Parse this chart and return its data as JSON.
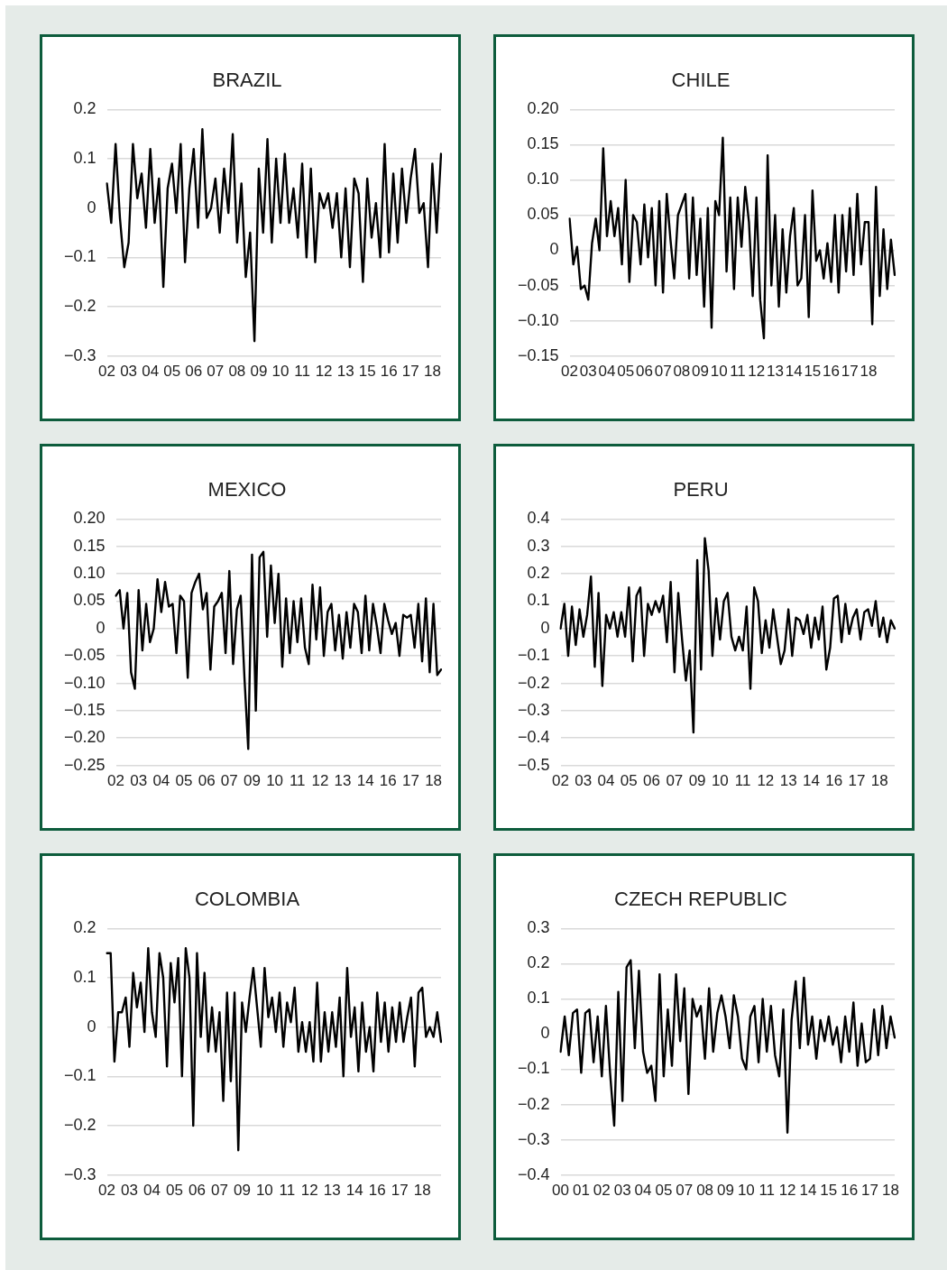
{
  "chart_data": [
    {
      "type": "line",
      "title": "BRAZIL",
      "color": "#000000",
      "grid": "y",
      "ylim": [
        -0.3,
        0.2
      ],
      "yticks": [
        {
          "value": 0.2,
          "label": "0.2"
        },
        {
          "value": 0.1,
          "label": "0.1"
        },
        {
          "value": 0,
          "label": "0"
        },
        {
          "value": -0.1,
          "label": "−0.1"
        },
        {
          "value": -0.2,
          "label": "−0.2"
        },
        {
          "value": -0.3,
          "label": "−0.3"
        }
      ],
      "categories": [
        "02",
        null,
        null,
        null,
        null,
        "03",
        null,
        null,
        null,
        null,
        "04",
        null,
        null,
        null,
        null,
        "05",
        null,
        null,
        null,
        null,
        "06",
        null,
        null,
        null,
        null,
        "07",
        null,
        null,
        null,
        null,
        "08",
        null,
        null,
        null,
        null,
        "09",
        null,
        null,
        null,
        null,
        "10",
        null,
        null,
        null,
        null,
        "11",
        null,
        null,
        null,
        null,
        "12",
        null,
        null,
        null,
        null,
        "13",
        null,
        null,
        null,
        null,
        "15",
        null,
        null,
        null,
        null,
        "16",
        null,
        null,
        null,
        null,
        "17",
        null,
        null,
        null,
        null,
        "18",
        null,
        null
      ],
      "values": [
        0.05,
        -0.03,
        0.13,
        -0.02,
        -0.12,
        -0.07,
        0.13,
        0.02,
        0.07,
        -0.04,
        0.12,
        -0.03,
        0.06,
        -0.16,
        0.04,
        0.09,
        -0.01,
        0.13,
        -0.11,
        0.04,
        0.12,
        -0.04,
        0.16,
        -0.02,
        0.0,
        0.06,
        -0.05,
        0.08,
        -0.01,
        0.15,
        -0.07,
        0.05,
        -0.14,
        -0.05,
        -0.27,
        0.08,
        -0.05,
        0.14,
        -0.07,
        0.1,
        -0.03,
        0.11,
        -0.03,
        0.04,
        -0.06,
        0.09,
        -0.1,
        0.08,
        -0.11,
        0.03,
        0.0,
        0.03,
        -0.04,
        0.03,
        -0.1,
        0.04,
        -0.12,
        0.06,
        0.03,
        -0.15,
        0.06,
        -0.06,
        0.01,
        -0.1,
        0.13,
        -0.09,
        0.07,
        -0.07,
        0.08,
        -0.03,
        0.06,
        0.12,
        -0.01,
        0.01,
        -0.12,
        0.09,
        -0.05,
        0.11
      ]
    },
    {
      "type": "line",
      "title": "CHILE",
      "color": "#000000",
      "grid": "y",
      "ylim": [
        -0.15,
        0.2
      ],
      "yticks": [
        {
          "value": 0.2,
          "label": "0.20"
        },
        {
          "value": 0.15,
          "label": "0.15"
        },
        {
          "value": 0.1,
          "label": "0.10"
        },
        {
          "value": 0.05,
          "label": "0.05"
        },
        {
          "value": 0,
          "label": "0"
        },
        {
          "value": -0.05,
          "label": "−0.05"
        },
        {
          "value": -0.1,
          "label": "−0.10"
        },
        {
          "value": -0.15,
          "label": "−0.15"
        }
      ],
      "categories": [
        "02",
        null,
        null,
        null,
        null,
        "03",
        null,
        null,
        null,
        null,
        "04",
        null,
        null,
        null,
        null,
        "05",
        null,
        null,
        null,
        null,
        "06",
        null,
        null,
        null,
        null,
        "07",
        null,
        null,
        null,
        null,
        "08",
        null,
        null,
        null,
        null,
        "09",
        null,
        null,
        null,
        null,
        "10",
        null,
        null,
        null,
        null,
        "11",
        null,
        null,
        null,
        null,
        "12",
        null,
        null,
        null,
        null,
        "13",
        null,
        null,
        null,
        null,
        "14",
        null,
        null,
        null,
        null,
        "15",
        null,
        null,
        null,
        null,
        "16",
        null,
        null,
        null,
        null,
        "17",
        null,
        null,
        null,
        null,
        "18",
        null,
        null,
        null,
        null,
        null,
        null,
        null
      ],
      "values": [
        0.045,
        -0.02,
        0.005,
        -0.055,
        -0.05,
        -0.07,
        0.01,
        0.045,
        0.0,
        0.145,
        0.02,
        0.07,
        0.02,
        0.06,
        -0.02,
        0.1,
        -0.045,
        0.05,
        0.04,
        -0.02,
        0.065,
        -0.01,
        0.06,
        -0.05,
        0.07,
        -0.06,
        0.08,
        0.015,
        -0.04,
        0.05,
        0.065,
        0.08,
        -0.04,
        0.075,
        -0.035,
        0.045,
        -0.08,
        0.06,
        -0.11,
        0.07,
        0.05,
        0.16,
        -0.03,
        0.075,
        -0.055,
        0.075,
        0.005,
        0.09,
        0.04,
        -0.065,
        0.075,
        -0.07,
        -0.125,
        0.135,
        -0.05,
        0.05,
        -0.08,
        0.03,
        -0.06,
        0.02,
        0.06,
        -0.05,
        -0.04,
        0.05,
        -0.095,
        0.085,
        -0.015,
        0.0,
        -0.04,
        0.01,
        -0.045,
        0.05,
        -0.06,
        0.05,
        -0.03,
        0.06,
        -0.035,
        0.08,
        -0.02,
        0.04,
        0.04,
        -0.105,
        0.09,
        -0.065,
        0.03,
        -0.055,
        0.015,
        -0.035
      ]
    },
    {
      "type": "line",
      "title": "MEXICO",
      "color": "#000000",
      "grid": "y",
      "ylim": [
        -0.25,
        0.2
      ],
      "yticks": [
        {
          "value": 0.2,
          "label": "0.20"
        },
        {
          "value": 0.15,
          "label": "0.15"
        },
        {
          "value": 0.1,
          "label": "0.10"
        },
        {
          "value": 0.05,
          "label": "0.05"
        },
        {
          "value": 0,
          "label": "0"
        },
        {
          "value": -0.05,
          "label": "−0.05"
        },
        {
          "value": -0.1,
          "label": "−0.10"
        },
        {
          "value": -0.15,
          "label": "−0.15"
        },
        {
          "value": -0.2,
          "label": "−0.20"
        },
        {
          "value": -0.25,
          "label": "−0.25"
        }
      ],
      "categories": [
        "02",
        null,
        null,
        null,
        null,
        null,
        "03",
        null,
        null,
        null,
        null,
        null,
        "04",
        null,
        null,
        null,
        null,
        null,
        "05",
        null,
        null,
        null,
        null,
        null,
        "06",
        null,
        null,
        null,
        null,
        null,
        "07",
        null,
        null,
        null,
        null,
        null,
        "09",
        null,
        null,
        null,
        null,
        null,
        "10",
        null,
        null,
        null,
        null,
        null,
        "11",
        null,
        null,
        null,
        null,
        null,
        "12",
        null,
        null,
        null,
        null,
        null,
        "13",
        null,
        null,
        null,
        null,
        null,
        "14",
        null,
        null,
        null,
        null,
        null,
        "16",
        null,
        null,
        null,
        null,
        null,
        "17",
        null,
        null,
        null,
        null,
        null,
        "18",
        null,
        null
      ],
      "values": [
        0.06,
        0.07,
        0.0,
        0.065,
        -0.08,
        -0.11,
        0.07,
        -0.04,
        0.045,
        -0.025,
        0.0,
        0.09,
        0.03,
        0.085,
        0.04,
        0.045,
        -0.045,
        0.06,
        0.05,
        -0.09,
        0.065,
        0.085,
        0.1,
        0.035,
        0.065,
        -0.075,
        0.04,
        0.05,
        0.065,
        -0.045,
        0.105,
        -0.065,
        0.035,
        0.06,
        -0.09,
        -0.22,
        0.135,
        -0.15,
        0.13,
        0.14,
        -0.015,
        0.115,
        0.01,
        0.1,
        -0.07,
        0.055,
        -0.045,
        0.05,
        -0.025,
        0.055,
        -0.035,
        -0.065,
        0.08,
        -0.02,
        0.075,
        -0.05,
        0.03,
        0.045,
        -0.04,
        0.025,
        -0.055,
        0.03,
        -0.035,
        0.045,
        0.03,
        -0.045,
        0.06,
        -0.04,
        0.045,
        0.005,
        -0.045,
        0.045,
        0.015,
        -0.01,
        0.01,
        -0.05,
        0.025,
        0.02,
        0.025,
        -0.035,
        0.045,
        -0.06,
        0.055,
        -0.08,
        0.045,
        -0.085,
        -0.075
      ]
    },
    {
      "type": "line",
      "title": "PERU",
      "color": "#000000",
      "grid": "y",
      "ylim": [
        -0.5,
        0.4
      ],
      "yticks": [
        {
          "value": 0.4,
          "label": "0.4"
        },
        {
          "value": 0.3,
          "label": "0.3"
        },
        {
          "value": 0.2,
          "label": "0.2"
        },
        {
          "value": 0.1,
          "label": "0.1"
        },
        {
          "value": 0,
          "label": "0"
        },
        {
          "value": -0.1,
          "label": "−0.1"
        },
        {
          "value": -0.2,
          "label": "−0.2"
        },
        {
          "value": -0.3,
          "label": "−0.3"
        },
        {
          "value": -0.4,
          "label": "−0.4"
        },
        {
          "value": -0.5,
          "label": "−0.5"
        }
      ],
      "categories": [
        "02",
        null,
        null,
        null,
        null,
        null,
        "03",
        null,
        null,
        null,
        null,
        null,
        "04",
        null,
        null,
        null,
        null,
        null,
        "05",
        null,
        null,
        null,
        null,
        null,
        "06",
        null,
        null,
        null,
        null,
        null,
        "07",
        null,
        null,
        null,
        null,
        null,
        "09",
        null,
        null,
        null,
        null,
        null,
        "10",
        null,
        null,
        null,
        null,
        null,
        "11",
        null,
        null,
        null,
        null,
        null,
        "12",
        null,
        null,
        null,
        null,
        null,
        "13",
        null,
        null,
        null,
        null,
        null,
        "14",
        null,
        null,
        null,
        null,
        null,
        "16",
        null,
        null,
        null,
        null,
        null,
        "17",
        null,
        null,
        null,
        null,
        null,
        "18",
        null,
        null,
        null,
        null
      ],
      "values": [
        0.0,
        0.09,
        -0.1,
        0.08,
        -0.06,
        0.07,
        -0.03,
        0.05,
        0.19,
        -0.14,
        0.13,
        -0.21,
        0.05,
        0.0,
        0.06,
        -0.03,
        0.06,
        -0.03,
        0.15,
        -0.12,
        0.12,
        0.15,
        -0.1,
        0.09,
        0.05,
        0.1,
        0.06,
        0.12,
        -0.05,
        0.17,
        -0.16,
        0.13,
        -0.04,
        -0.19,
        -0.08,
        -0.38,
        0.25,
        -0.15,
        0.33,
        0.21,
        -0.1,
        0.11,
        -0.04,
        0.1,
        0.13,
        -0.03,
        -0.08,
        -0.03,
        -0.08,
        0.08,
        -0.22,
        0.15,
        0.1,
        -0.09,
        0.03,
        -0.07,
        0.07,
        -0.03,
        -0.13,
        -0.08,
        0.07,
        -0.1,
        0.04,
        0.03,
        -0.02,
        0.05,
        -0.07,
        0.04,
        -0.04,
        0.08,
        -0.15,
        -0.07,
        0.11,
        0.12,
        -0.05,
        0.09,
        -0.02,
        0.04,
        0.07,
        -0.04,
        0.06,
        0.07,
        0.01,
        0.1,
        -0.03,
        0.04,
        -0.05,
        0.03,
        0.0
      ]
    },
    {
      "type": "line",
      "title": "COLOMBIA",
      "color": "#000000",
      "grid": "y",
      "ylim": [
        -0.3,
        0.2
      ],
      "yticks": [
        {
          "value": 0.2,
          "label": "0.2"
        },
        {
          "value": 0.1,
          "label": "0.1"
        },
        {
          "value": 0,
          "label": "0"
        },
        {
          "value": -0.1,
          "label": "−0.1"
        },
        {
          "value": -0.2,
          "label": "−0.2"
        },
        {
          "value": -0.3,
          "label": "−0.3"
        }
      ],
      "categories": [
        "02",
        null,
        null,
        null,
        null,
        null,
        "03",
        null,
        null,
        null,
        null,
        null,
        "04",
        null,
        null,
        null,
        null,
        null,
        "05",
        null,
        null,
        null,
        null,
        null,
        "06",
        null,
        null,
        null,
        null,
        null,
        "07",
        null,
        null,
        null,
        null,
        null,
        "09",
        null,
        null,
        null,
        null,
        null,
        "10",
        null,
        null,
        null,
        null,
        null,
        "11",
        null,
        null,
        null,
        null,
        null,
        "12",
        null,
        null,
        null,
        null,
        null,
        "13",
        null,
        null,
        null,
        null,
        null,
        "14",
        null,
        null,
        null,
        null,
        null,
        "16",
        null,
        null,
        null,
        null,
        null,
        "17",
        null,
        null,
        null,
        null,
        null,
        "18",
        null,
        null,
        null,
        null,
        null
      ],
      "values": [
        0.15,
        0.15,
        -0.07,
        0.03,
        0.03,
        0.06,
        -0.04,
        0.11,
        0.04,
        0.09,
        -0.01,
        0.16,
        0.03,
        -0.02,
        0.15,
        0.1,
        -0.08,
        0.13,
        0.05,
        0.14,
        -0.1,
        0.16,
        0.1,
        -0.2,
        0.15,
        -0.02,
        0.11,
        -0.05,
        0.04,
        -0.05,
        0.03,
        -0.15,
        0.07,
        -0.11,
        0.07,
        -0.25,
        0.05,
        -0.01,
        0.06,
        0.12,
        0.04,
        -0.04,
        0.12,
        0.02,
        0.06,
        -0.01,
        0.07,
        -0.04,
        0.05,
        0.01,
        0.08,
        -0.05,
        0.01,
        -0.05,
        0.01,
        -0.07,
        0.09,
        -0.07,
        0.03,
        -0.05,
        0.03,
        -0.04,
        0.06,
        -0.1,
        0.12,
        -0.02,
        0.04,
        -0.09,
        0.05,
        -0.05,
        0.0,
        -0.09,
        0.07,
        -0.03,
        0.05,
        -0.05,
        0.04,
        -0.03,
        0.05,
        -0.03,
        0.02,
        0.06,
        -0.08,
        0.07,
        0.08,
        -0.02,
        0.0,
        -0.02,
        0.03,
        -0.03
      ]
    },
    {
      "type": "line",
      "title": "CZECH REPUBLIC",
      "color": "#000000",
      "grid": "y",
      "ylim": [
        -0.4,
        0.3
      ],
      "yticks": [
        {
          "value": 0.3,
          "label": "0.3"
        },
        {
          "value": 0.2,
          "label": "0.2"
        },
        {
          "value": 0.1,
          "label": "0.1"
        },
        {
          "value": 0,
          "label": "0"
        },
        {
          "value": -0.1,
          "label": "−0.1"
        },
        {
          "value": -0.2,
          "label": "−0.2"
        },
        {
          "value": -0.3,
          "label": "−0.3"
        },
        {
          "value": -0.4,
          "label": "−0.4"
        }
      ],
      "categories": [
        "00",
        null,
        null,
        null,
        null,
        "01",
        null,
        null,
        null,
        null,
        "02",
        null,
        null,
        null,
        null,
        "03",
        null,
        null,
        null,
        null,
        "04",
        null,
        null,
        null,
        null,
        "05",
        null,
        null,
        null,
        null,
        "07",
        null,
        null,
        null,
        null,
        "08",
        null,
        null,
        null,
        null,
        "09",
        null,
        null,
        null,
        null,
        "10",
        null,
        null,
        null,
        null,
        "11",
        null,
        null,
        null,
        null,
        "12",
        null,
        null,
        null,
        null,
        "14",
        null,
        null,
        null,
        null,
        "15",
        null,
        null,
        null,
        null,
        "16",
        null,
        null,
        null,
        null,
        "17",
        null,
        null,
        null,
        null,
        "18",
        null
      ],
      "values": [
        -0.05,
        0.05,
        -0.06,
        0.06,
        0.07,
        -0.11,
        0.06,
        0.07,
        -0.08,
        0.05,
        -0.12,
        0.08,
        -0.11,
        -0.26,
        0.12,
        -0.19,
        0.19,
        0.21,
        -0.04,
        0.18,
        -0.05,
        -0.11,
        -0.09,
        -0.19,
        0.17,
        -0.12,
        0.07,
        -0.09,
        0.17,
        -0.02,
        0.13,
        -0.17,
        0.1,
        0.05,
        0.08,
        -0.07,
        0.13,
        -0.05,
        0.06,
        0.11,
        0.05,
        -0.04,
        0.11,
        0.05,
        -0.07,
        -0.1,
        0.05,
        0.08,
        -0.08,
        0.1,
        -0.05,
        0.08,
        -0.06,
        -0.12,
        0.07,
        -0.28,
        0.04,
        0.15,
        -0.04,
        0.16,
        -0.03,
        0.05,
        -0.07,
        0.04,
        -0.02,
        0.05,
        -0.03,
        0.02,
        -0.08,
        0.05,
        -0.05,
        0.09,
        -0.09,
        0.03,
        -0.08,
        -0.07,
        0.07,
        -0.06,
        0.08,
        -0.04,
        0.05,
        -0.01
      ]
    }
  ]
}
